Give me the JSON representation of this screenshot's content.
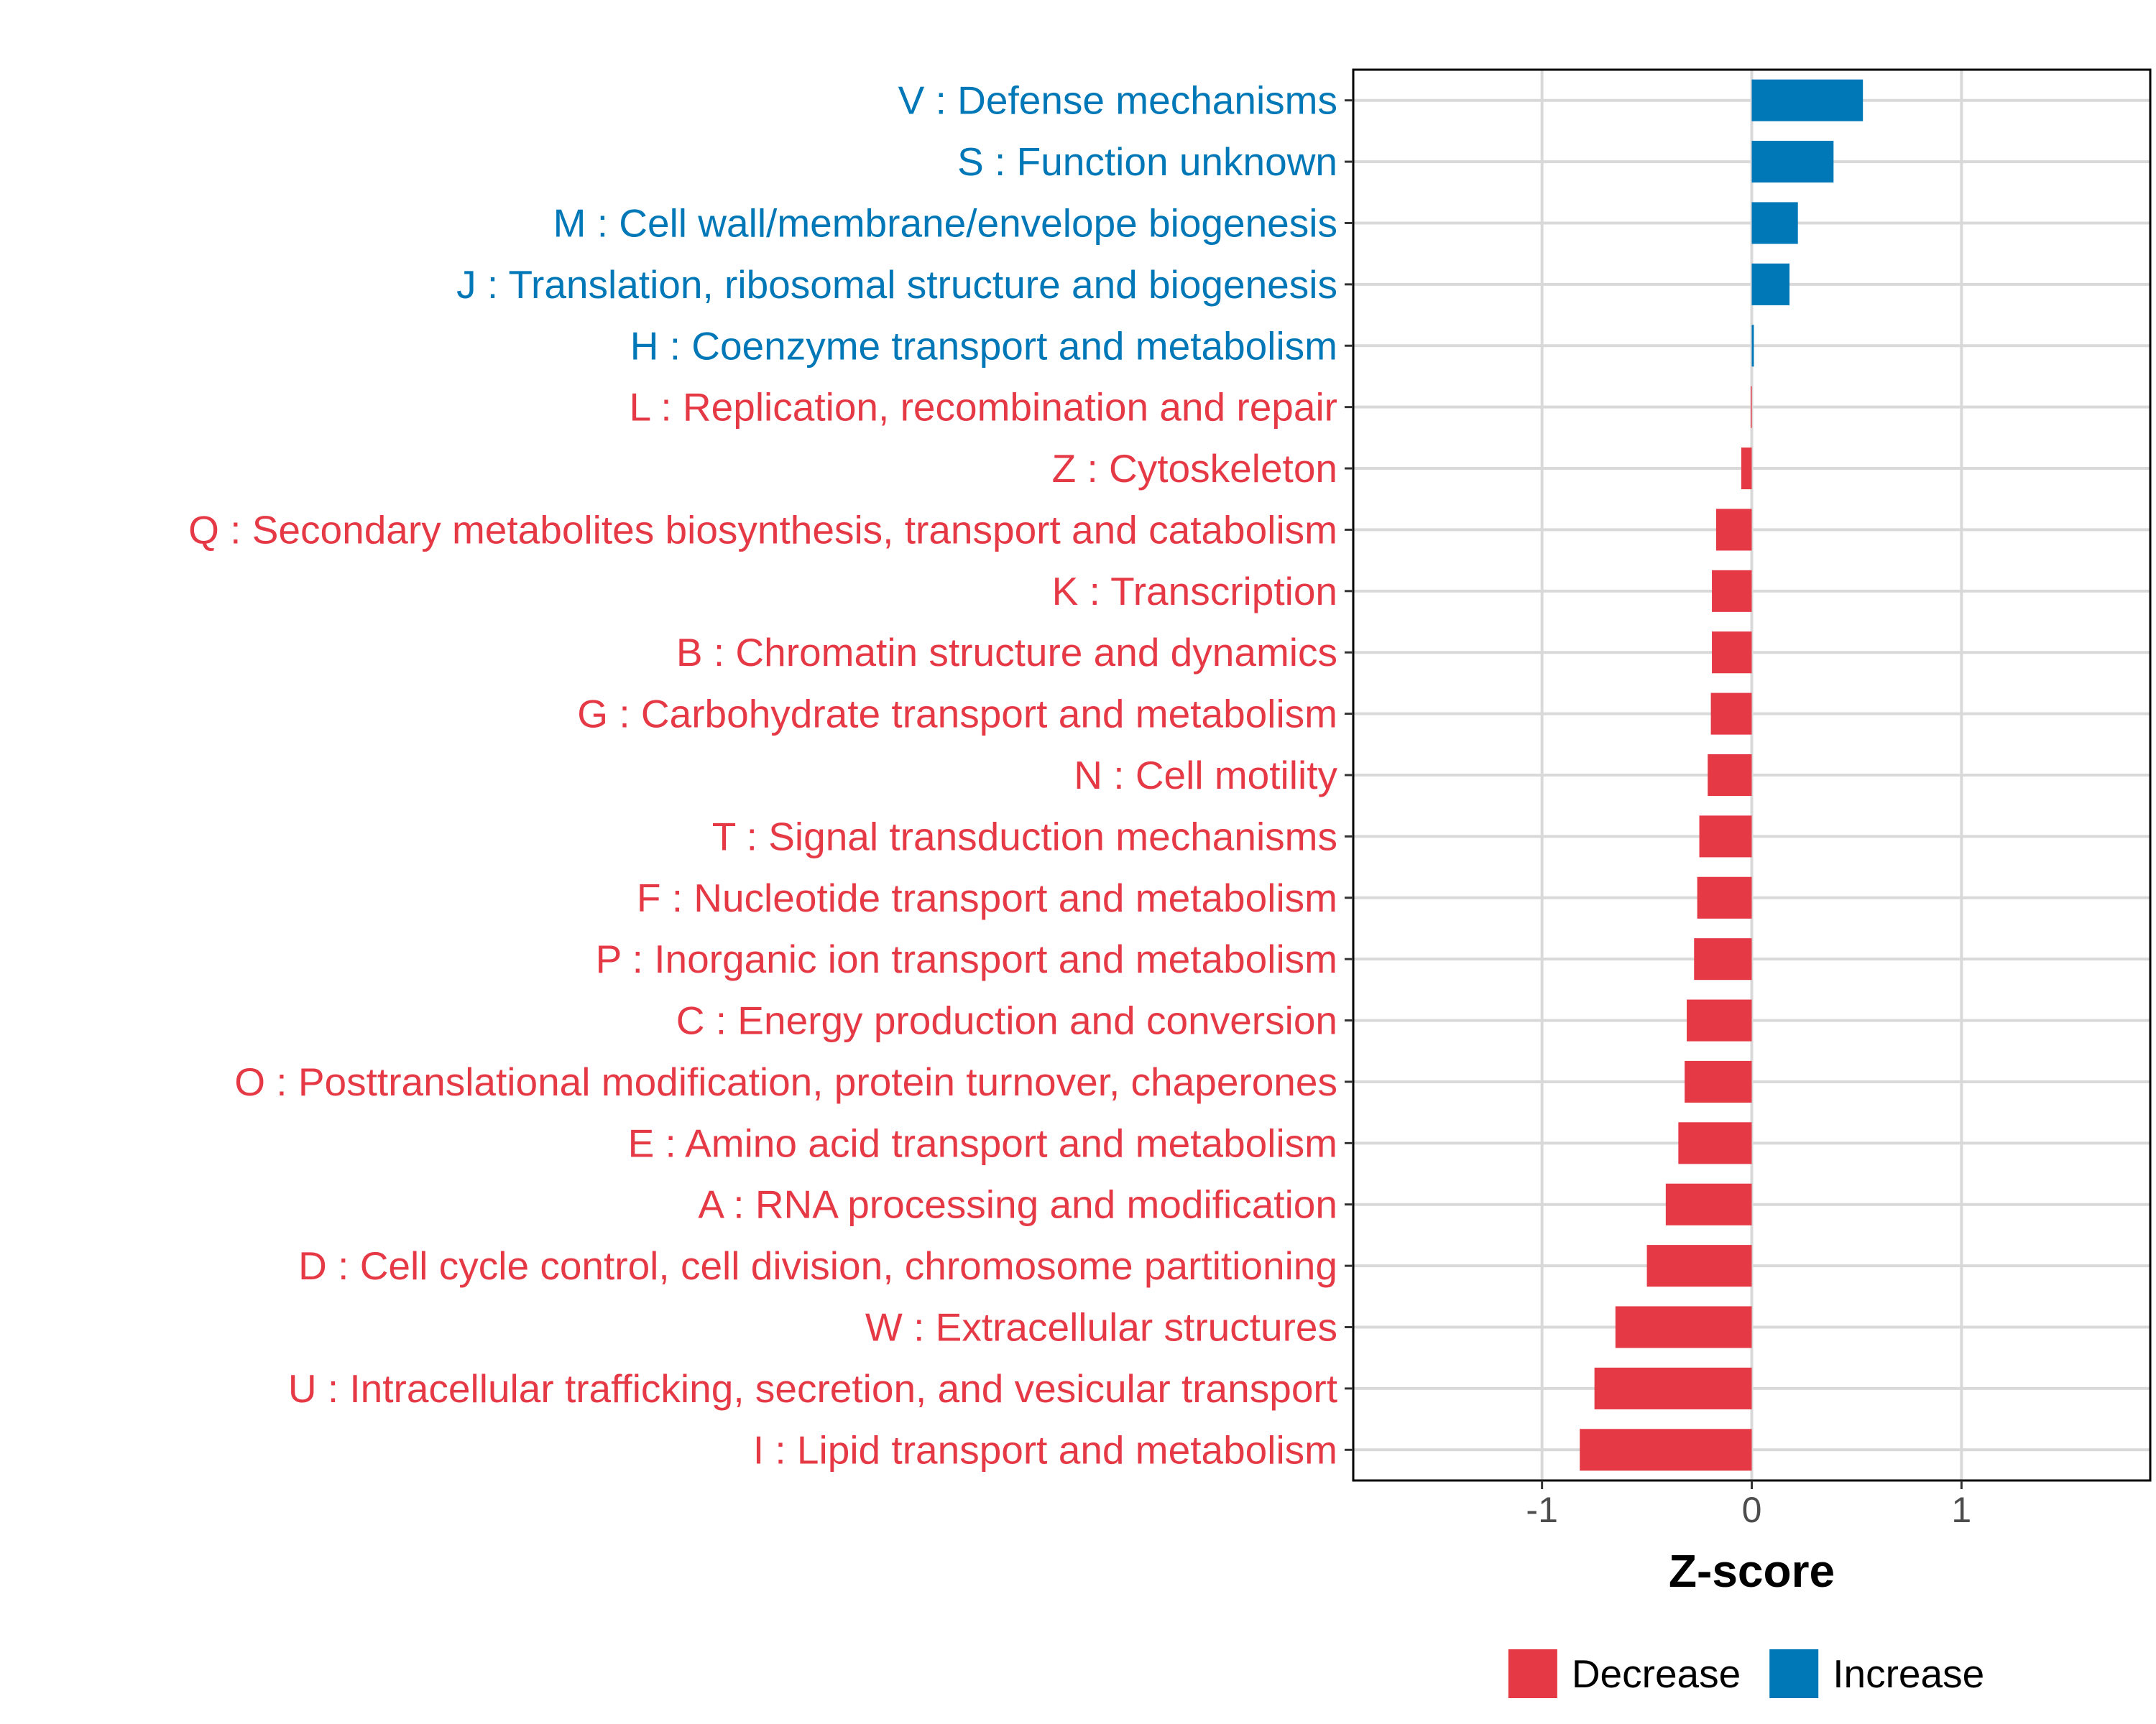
{
  "chart_data": {
    "type": "bar",
    "orientation": "horizontal",
    "xlabel": "Z-score",
    "ylabel": "",
    "xlim": [
      -1.9,
      1.9
    ],
    "xticks": [
      -1,
      0,
      1
    ],
    "xtick_labels": [
      "-1",
      "0",
      "1"
    ],
    "grid": true,
    "legend_position": "bottom",
    "categories": [
      "V : Defense mechanisms",
      "S : Function unknown",
      "M : Cell wall/membrane/envelope biogenesis",
      "J : Translation, ribosomal structure and biogenesis",
      "H : Coenzyme transport and metabolism",
      "L : Replication, recombination and repair",
      "Z : Cytoskeleton",
      "Q : Secondary metabolites biosynthesis, transport and catabolism",
      "K : Transcription",
      "B : Chromatin structure and dynamics",
      "G : Carbohydrate transport and metabolism",
      "N : Cell motility",
      "T : Signal transduction mechanisms",
      "F : Nucleotide transport and metabolism",
      "P : Inorganic ion transport and metabolism",
      "C : Energy production and conversion",
      "O : Posttranslational modification, protein turnover, chaperones",
      "E : Amino acid transport and metabolism",
      "A : RNA processing and modification",
      "D : Cell cycle control, cell division, chromosome partitioning",
      "W : Extracellular structures",
      "U : Intracellular trafficking, secretion, and vesicular transport",
      "I : Lipid transport and metabolism"
    ],
    "values": [
      0.53,
      0.39,
      0.22,
      0.18,
      0.01,
      -0.005,
      -0.05,
      -0.17,
      -0.19,
      -0.19,
      -0.195,
      -0.21,
      -0.25,
      -0.26,
      -0.275,
      -0.31,
      -0.32,
      -0.35,
      -0.41,
      -0.5,
      -0.65,
      -0.75,
      -0.82
    ],
    "groups": [
      "Increase",
      "Increase",
      "Increase",
      "Increase",
      "Increase",
      "Decrease",
      "Decrease",
      "Decrease",
      "Decrease",
      "Decrease",
      "Decrease",
      "Decrease",
      "Decrease",
      "Decrease",
      "Decrease",
      "Decrease",
      "Decrease",
      "Decrease",
      "Decrease",
      "Decrease",
      "Decrease",
      "Decrease",
      "Decrease"
    ],
    "legend": [
      {
        "name": "Decrease",
        "color": "#E63946"
      },
      {
        "name": "Increase",
        "color": "#0077B6"
      }
    ]
  }
}
